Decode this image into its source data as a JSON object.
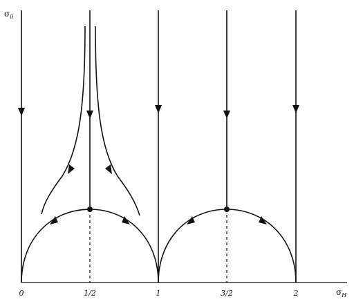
{
  "diagram": {
    "y_axis_label": {
      "symbol": "σ",
      "subscript": "0"
    },
    "x_axis_label": {
      "symbol": "σ",
      "subscript": "H"
    },
    "tick_labels": [
      "0",
      "1/2",
      "1",
      "3/2",
      "2"
    ],
    "colors": {
      "stroke": "#111111",
      "background": "#ffffff"
    }
  }
}
